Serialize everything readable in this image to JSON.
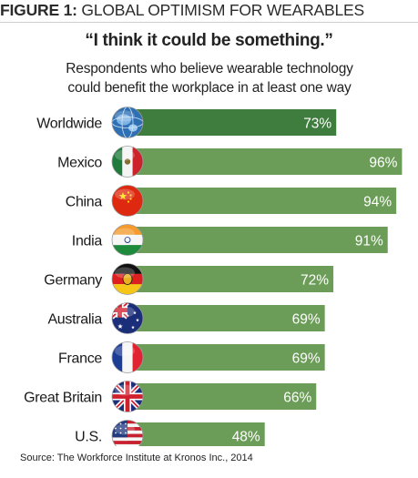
{
  "figure_label": "FIGURE 1:",
  "figure_title": "GLOBAL OPTIMISM FOR WEARABLES",
  "quote": "“I think it could be something.”",
  "subtitle_line1": "Respondents who believe wearable technology",
  "subtitle_line2": "could benefit the workplace in at least one way",
  "source": "Source: The Workforce Institute at Kronos Inc., 2014",
  "colors": {
    "bar_primary": "#3f7d3e",
    "bar_secondary": "#6b9d58",
    "value_text": "#ffffff",
    "label_text": "#1a1a1a"
  },
  "chart_data": {
    "type": "bar",
    "orientation": "horizontal",
    "categories": [
      "Worldwide",
      "Mexico",
      "China",
      "India",
      "Germany",
      "Australia",
      "France",
      "Great Britain",
      "U.S."
    ],
    "values": [
      73,
      96,
      94,
      91,
      72,
      69,
      69,
      66,
      48
    ],
    "value_labels": [
      "73%",
      "96%",
      "94%",
      "91%",
      "72%",
      "69%",
      "69%",
      "66%",
      "48%"
    ],
    "icons": [
      "globe-icon",
      "mexico-flag-icon",
      "china-flag-icon",
      "india-flag-icon",
      "germany-flag-icon",
      "australia-flag-icon",
      "france-flag-icon",
      "great-britain-flag-icon",
      "us-flag-icon"
    ],
    "xlim": [
      0,
      100
    ],
    "grid": false,
    "legend": "none"
  }
}
